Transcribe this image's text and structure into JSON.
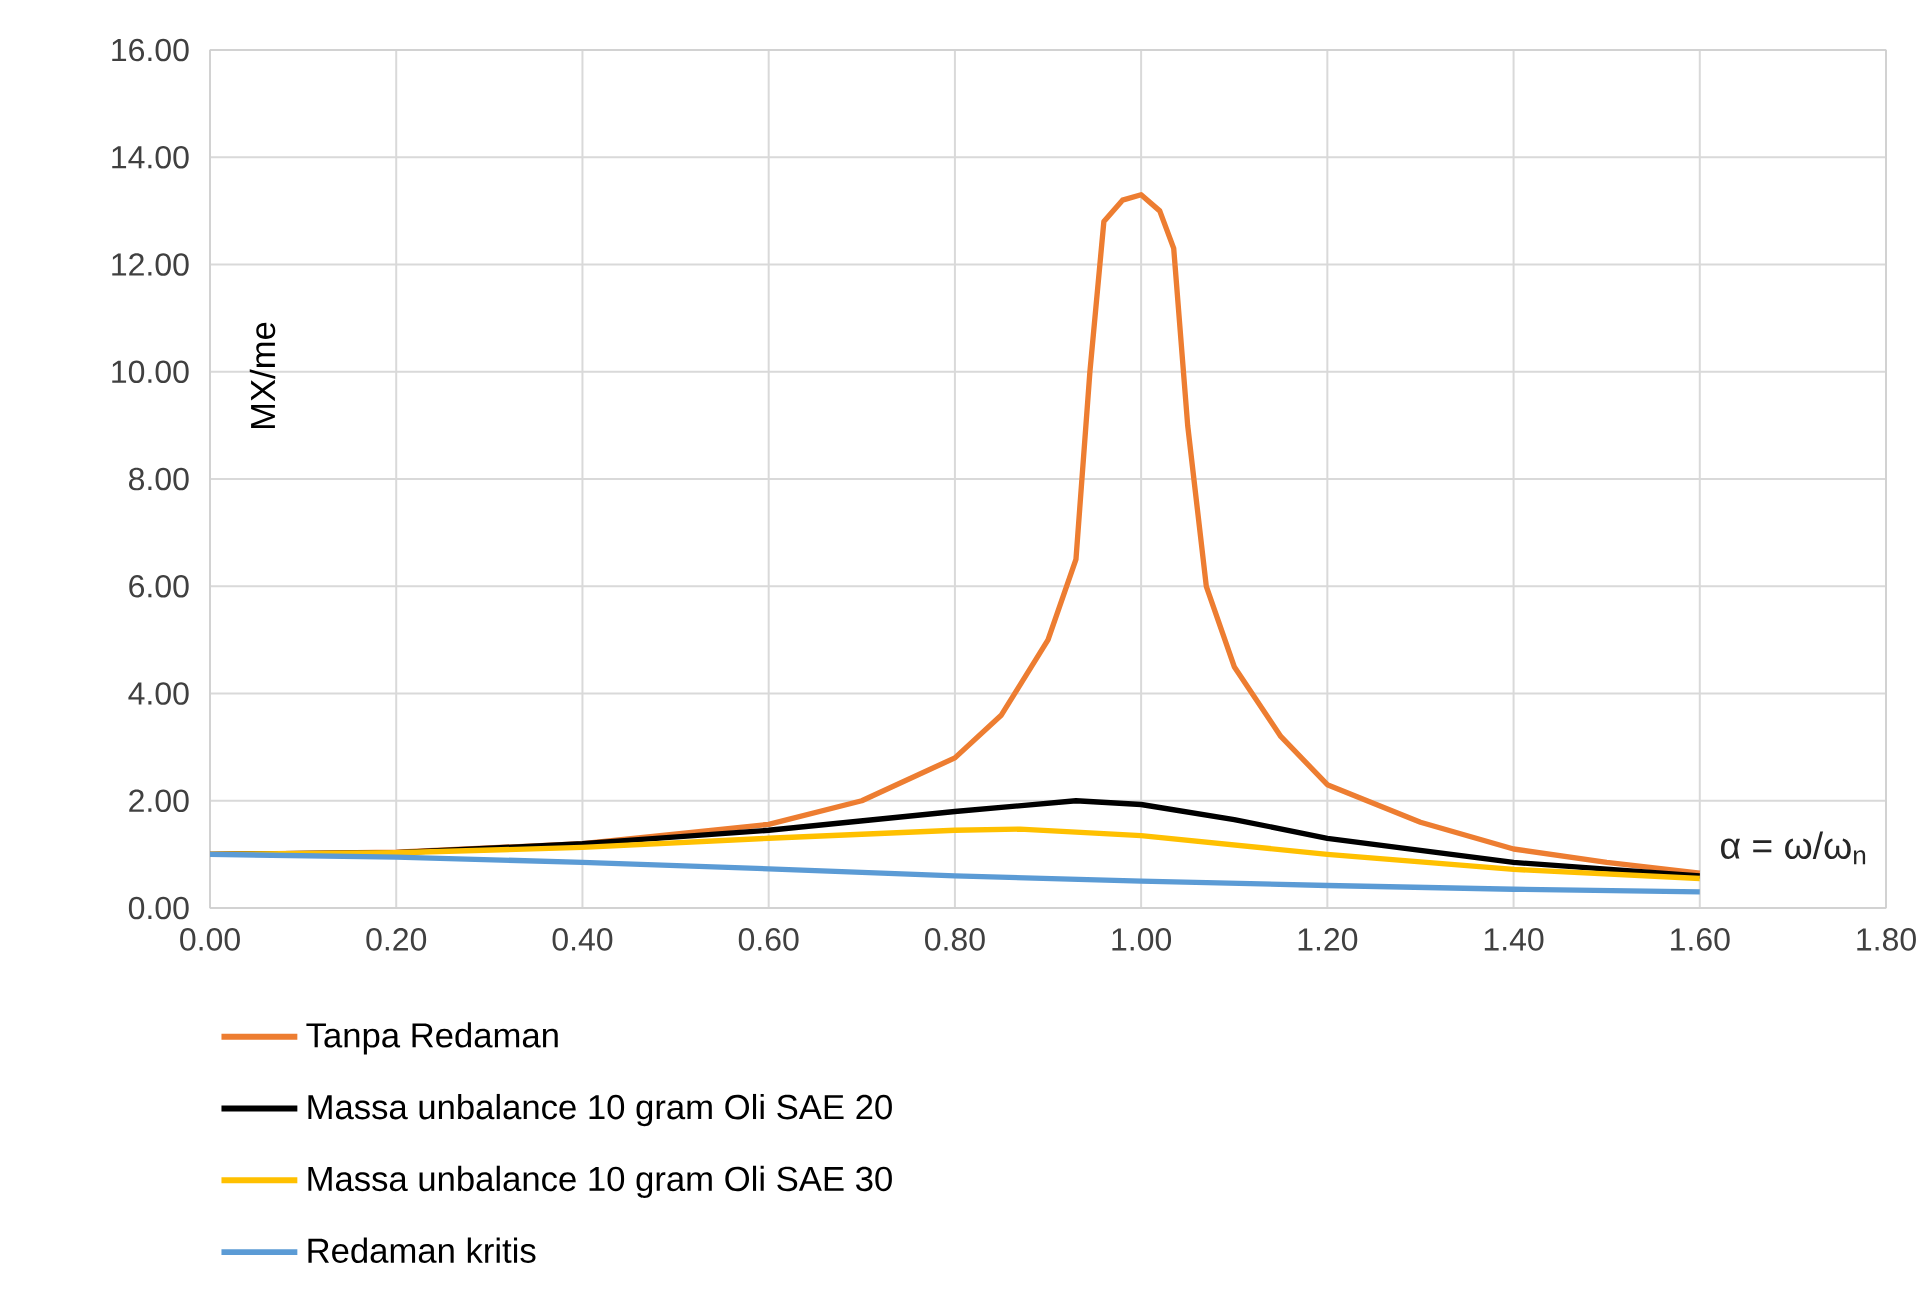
{
  "chart_data": {
    "type": "line",
    "ylabel": "MX/me",
    "xlabel": "α = ω/ω$_{n}$",
    "xlim": [
      0,
      1.8
    ],
    "ylim": [
      0,
      16
    ],
    "xticks": [
      {
        "value": 0,
        "label": "0.00"
      },
      {
        "value": 0.2,
        "label": "0.20"
      },
      {
        "value": 0.4,
        "label": "0.40"
      },
      {
        "value": 0.6,
        "label": "0.60"
      },
      {
        "value": 0.8,
        "label": "0.80"
      },
      {
        "value": 1.0,
        "label": "1.00"
      },
      {
        "value": 1.2,
        "label": "1.20"
      },
      {
        "value": 1.4,
        "label": "1.40"
      },
      {
        "value": 1.6,
        "label": "1.60"
      },
      {
        "value": 1.8,
        "label": "1.80"
      }
    ],
    "yticks": [
      {
        "value": 0,
        "label": "0.00"
      },
      {
        "value": 2,
        "label": "2.00"
      },
      {
        "value": 4,
        "label": "4.00"
      },
      {
        "value": 6,
        "label": "6.00"
      },
      {
        "value": 8,
        "label": "8.00"
      },
      {
        "value": 10,
        "label": "10.00"
      },
      {
        "value": 12,
        "label": "12.00"
      },
      {
        "value": 14,
        "label": "14.00"
      },
      {
        "value": 16,
        "label": "16.00"
      }
    ],
    "grid": true,
    "legend": "bottom",
    "series": [
      {
        "name": "Tanpa Redaman",
        "color": "#ed7d31",
        "x": [
          0,
          0.2,
          0.4,
          0.6,
          0.7,
          0.8,
          0.85,
          0.9,
          0.93,
          0.945,
          0.96,
          0.98,
          1.0,
          1.02,
          1.035,
          1.05,
          1.07,
          1.1,
          1.15,
          1.2,
          1.3,
          1.4,
          1.5,
          1.6
        ],
        "values": [
          1.0,
          1.04,
          1.2,
          1.56,
          2.0,
          2.8,
          3.6,
          5.0,
          6.5,
          10.0,
          12.8,
          13.2,
          13.3,
          13.0,
          12.3,
          9.0,
          6.0,
          4.5,
          3.2,
          2.3,
          1.6,
          1.1,
          0.85,
          0.65
        ]
      },
      {
        "name": "Massa unbalance 10 gram Oli SAE 20",
        "color": "#000000",
        "x": [
          0,
          0.2,
          0.4,
          0.6,
          0.8,
          0.93,
          1.0,
          1.1,
          1.2,
          1.4,
          1.6
        ],
        "values": [
          1.0,
          1.03,
          1.2,
          1.45,
          1.8,
          2.0,
          1.93,
          1.65,
          1.3,
          0.85,
          0.6
        ]
      },
      {
        "name": "Massa unbalance 10 gram Oli SAE 30",
        "color": "#ffc000",
        "x": [
          0,
          0.2,
          0.4,
          0.6,
          0.8,
          0.87,
          1.0,
          1.2,
          1.4,
          1.6
        ],
        "values": [
          1.0,
          1.03,
          1.13,
          1.3,
          1.45,
          1.47,
          1.35,
          1.0,
          0.72,
          0.55
        ]
      },
      {
        "name": "Redaman kritis",
        "color": "#5b9bd5",
        "x": [
          0,
          0.2,
          0.4,
          0.6,
          0.8,
          1.0,
          1.2,
          1.4,
          1.6
        ],
        "values": [
          1.0,
          0.95,
          0.85,
          0.73,
          0.6,
          0.5,
          0.42,
          0.35,
          0.3
        ]
      }
    ]
  }
}
